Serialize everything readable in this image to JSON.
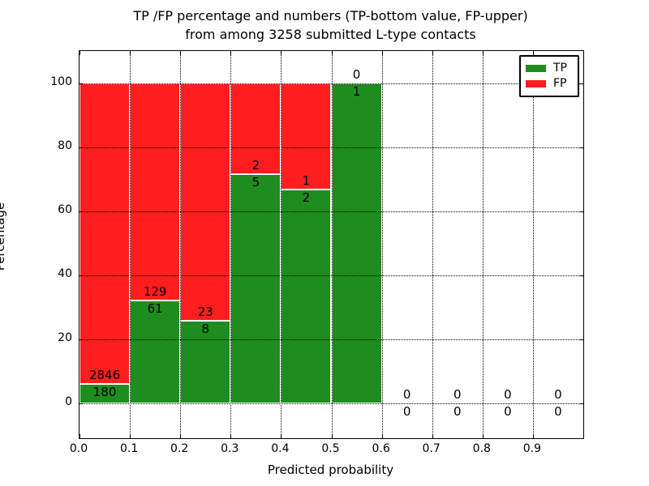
{
  "title": {
    "line1": "TP /FP percentage and numbers (TP-bottom value, FP-upper)",
    "line2": "from among 3258 submitted L-type contacts"
  },
  "chart_data": {
    "type": "bar",
    "stacked": true,
    "title": "TP /FP percentage and numbers (TP-bottom value, FP-upper) from among 3258 submitted L-type contacts",
    "xlabel": "Predicted probability",
    "ylabel": "Percentage",
    "total_contacts": 3258,
    "xlim": [
      0.0,
      1.0
    ],
    "ylim_data": [
      0,
      100
    ],
    "ylim_render": [
      -11,
      110
    ],
    "grid": true,
    "x_ticks": [
      0.0,
      0.1,
      0.2,
      0.3,
      0.4,
      0.5,
      0.6,
      0.7,
      0.8,
      0.9
    ],
    "x_tick_labels": [
      "0.0",
      "0.1",
      "0.2",
      "0.3",
      "0.4",
      "0.5",
      "0.6",
      "0.7",
      "0.8",
      "0.9"
    ],
    "y_ticks": [
      0,
      20,
      40,
      60,
      80,
      100
    ],
    "y_tick_labels": [
      "0",
      "20",
      "40",
      "60",
      "80",
      "100"
    ],
    "legend": {
      "position": "upper right",
      "entries": [
        {
          "label": "TP",
          "color": "#1e8c1e"
        },
        {
          "label": "FP",
          "color": "#ff1e1e"
        }
      ]
    },
    "bins": [
      {
        "range": [
          0.0,
          0.1
        ],
        "tp": 180,
        "fp": 2846
      },
      {
        "range": [
          0.1,
          0.2
        ],
        "tp": 61,
        "fp": 129
      },
      {
        "range": [
          0.2,
          0.3
        ],
        "tp": 8,
        "fp": 23
      },
      {
        "range": [
          0.3,
          0.4
        ],
        "tp": 5,
        "fp": 2
      },
      {
        "range": [
          0.4,
          0.5
        ],
        "tp": 2,
        "fp": 1
      },
      {
        "range": [
          0.5,
          0.6
        ],
        "tp": 1,
        "fp": 0
      },
      {
        "range": [
          0.6,
          0.7
        ],
        "tp": 0,
        "fp": 0
      },
      {
        "range": [
          0.7,
          0.8
        ],
        "tp": 0,
        "fp": 0
      },
      {
        "range": [
          0.8,
          0.9
        ],
        "tp": 0,
        "fp": 0
      },
      {
        "range": [
          0.9,
          1.0
        ],
        "tp": 0,
        "fp": 0
      }
    ]
  },
  "colors": {
    "tp": "#1e8c1e",
    "fp": "#ff1e1e",
    "bar_edge": "#ffffff",
    "grid": "#000000",
    "axis": "#000000",
    "background": "#ffffff"
  }
}
